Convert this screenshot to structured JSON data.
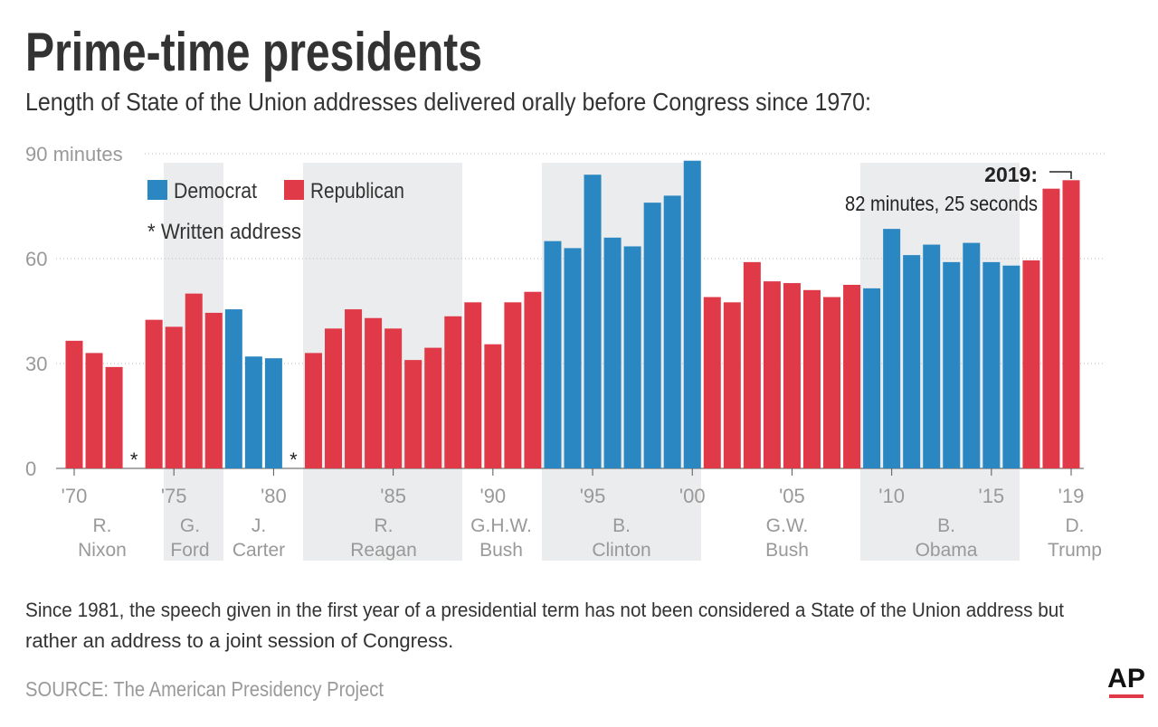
{
  "chart_data": {
    "type": "bar",
    "title": "Prime-time presidents",
    "subtitle": "Length of State of the Union addresses delivered orally before Congress since 1970:",
    "categories": [
      "'70",
      null,
      null,
      null,
      null,
      "'75",
      null,
      null,
      null,
      null,
      "'80",
      null,
      null,
      null,
      null,
      null,
      "'85",
      null,
      null,
      null,
      null,
      "'90",
      null,
      null,
      null,
      null,
      "'95",
      null,
      null,
      null,
      null,
      "'00",
      null,
      null,
      null,
      null,
      "'05",
      null,
      null,
      null,
      null,
      "'10",
      null,
      null,
      null,
      null,
      "'15",
      null,
      null,
      null,
      "'19"
    ],
    "series": [
      {
        "name": "Democrat",
        "color": "#2a87c1",
        "values": [
          null,
          null,
          null,
          null,
          null,
          null,
          null,
          null,
          45.5,
          32,
          31.5,
          null,
          null,
          null,
          null,
          null,
          null,
          null,
          null,
          null,
          null,
          null,
          null,
          null,
          65,
          63,
          84,
          66,
          63.5,
          76,
          78,
          88,
          null,
          null,
          null,
          null,
          null,
          null,
          null,
          null,
          51.5,
          68.5,
          61,
          64,
          59,
          64.5,
          59,
          58,
          null,
          null,
          null
        ]
      },
      {
        "name": "Republican",
        "color": "#e03a48",
        "values": [
          36.5,
          33,
          29,
          null,
          42.5,
          40.5,
          50,
          44.5,
          null,
          null,
          null,
          null,
          33,
          40,
          45.5,
          43,
          40,
          31,
          34.5,
          43.5,
          47.5,
          35.5,
          47.5,
          50.5,
          null,
          null,
          null,
          null,
          null,
          null,
          null,
          null,
          49,
          47.5,
          59,
          53.5,
          53,
          51,
          49,
          52.5,
          null,
          null,
          null,
          null,
          null,
          null,
          null,
          null,
          59.5,
          80,
          82.42
        ],
        "value_labels": [
          null,
          null,
          null,
          "*",
          null,
          null,
          null,
          null,
          null,
          null,
          null,
          "*",
          null,
          null,
          null,
          null,
          null,
          null,
          null,
          null,
          null,
          null,
          null,
          null,
          null,
          null,
          null,
          null,
          null,
          null,
          null,
          null,
          null,
          null,
          null,
          null,
          null,
          null,
          null,
          null,
          null,
          null,
          null,
          null,
          null,
          null,
          null,
          null,
          null,
          null,
          null
        ]
      }
    ],
    "ylim": [
      0,
      90
    ],
    "yticks": [
      0,
      30,
      60,
      {
        "value": 90,
        "label": "90 minutes"
      }
    ],
    "grid": true,
    "legend_note": "* Written address",
    "presidents": [
      [
        "R.",
        "Nixon"
      ],
      [
        "G.",
        "Ford"
      ],
      [
        "J.",
        "Carter"
      ],
      [
        "R.",
        "Reagan"
      ],
      [
        "G.H.W.",
        "Bush"
      ],
      [
        "B.",
        "Clinton"
      ],
      [
        "G.W.",
        "Bush"
      ],
      [
        "B.",
        "Obama"
      ],
      [
        "D.",
        "Trump"
      ]
    ],
    "annotation": {
      "title": "2019:",
      "text": "82 minutes, 25 seconds"
    },
    "note": "Since 1981, the speech given in the first year of a presidential term has not been considered a State of the Union address but rather an address to a joint session of Congress.",
    "source": "SOURCE: The American Presidency Project",
    "logo": "AP"
  }
}
